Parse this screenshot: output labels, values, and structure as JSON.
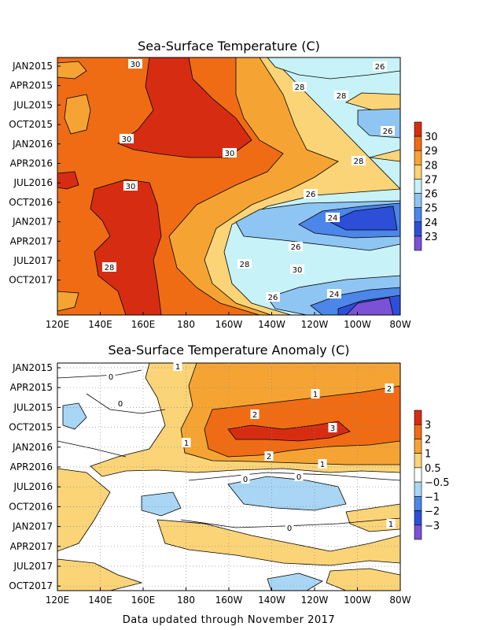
{
  "footer": "Data updated through November 2017",
  "chart_data": [
    {
      "type": "heatmap",
      "title": "Sea-Surface Temperature (C)",
      "xlabel": "",
      "ylabel": "",
      "x_ticks": [
        "120E",
        "140E",
        "160E",
        "180",
        "160W",
        "140W",
        "120W",
        "100W",
        "80W"
      ],
      "y_ticks": [
        "JAN2015",
        "APR2015",
        "JUL2015",
        "OCT2015",
        "JAN2016",
        "APR2016",
        "JUL2016",
        "OCT2016",
        "JAN2017",
        "APR2017",
        "JUL2017",
        "OCT2017"
      ],
      "colorbar_levels": [
        "30",
        "29",
        "28",
        "27",
        "26",
        "25",
        "24",
        "23"
      ],
      "colors": [
        "#7b52d6",
        "#2d4fd8",
        "#4b86e8",
        "#8fc5f2",
        "#c7f2f7",
        "#fbd478",
        "#f5a434",
        "#ef6c14",
        "#d62d12"
      ],
      "contour_labels": [
        "30",
        "26",
        "28",
        "28",
        "30",
        "30",
        "26",
        "28",
        "30",
        "26",
        "24",
        "26",
        "28",
        "30",
        "28",
        "26",
        "24"
      ],
      "grid": false,
      "legend": "right"
    },
    {
      "type": "heatmap",
      "title": "Sea-Surface Temperature Anomaly (C)",
      "xlabel": "",
      "ylabel": "",
      "x_ticks": [
        "120E",
        "140E",
        "160E",
        "180",
        "160W",
        "140W",
        "120W",
        "100W",
        "80W"
      ],
      "y_ticks": [
        "JAN2015",
        "APR2015",
        "JUL2015",
        "OCT2015",
        "JAN2016",
        "APR2016",
        "JUL2016",
        "OCT2016",
        "JAN2017",
        "APR2017",
        "JUL2017",
        "OCT2017"
      ],
      "colorbar_levels": [
        "3",
        "2",
        "1",
        "0.5",
        "−0.5",
        "−1",
        "−2",
        "−3"
      ],
      "colors": [
        "#7b52d6",
        "#2d4fd8",
        "#4b86e8",
        "#a9d6f5",
        "#ffffff",
        "#fbd478",
        "#f5a434",
        "#ef6c14",
        "#d62d12"
      ],
      "contour_labels": [
        "1",
        "0",
        "1",
        "2",
        "0",
        "2",
        "3",
        "1",
        "2",
        "1",
        "0",
        "0",
        "0",
        "1"
      ],
      "grid": true,
      "legend": "right"
    }
  ]
}
